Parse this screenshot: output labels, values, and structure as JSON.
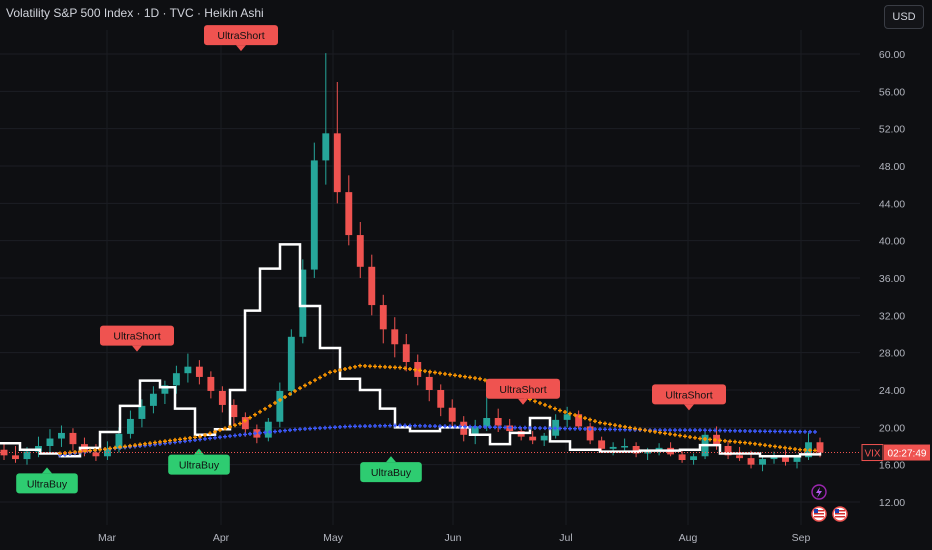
{
  "header": {
    "title": "Volatility S&P 500 Index · 1D · TVC · Heikin Ashi",
    "currency": "USD"
  },
  "price_tag": {
    "symbol": "VIX",
    "countdown": "02:27:49"
  },
  "colors": {
    "up": "#26a69a",
    "down": "#ef5350",
    "trail": "#ffffff",
    "slow": "#3d5afe",
    "mid": "#ff9800",
    "sell": "#ef5350",
    "buy": "#2ecc71",
    "bg": "#0e0f12"
  },
  "chart_data": {
    "type": "candlestick",
    "style": "Heikin Ashi",
    "ylim": [
      9.5,
      63
    ],
    "y_ticks": [
      "60.00",
      "56.00",
      "52.00",
      "48.00",
      "44.00",
      "40.00",
      "36.00",
      "32.00",
      "28.00",
      "24.00",
      "20.00",
      "16.00",
      "12.00"
    ],
    "x_ticks": [
      "Mar",
      "Apr",
      "May",
      "Jun",
      "Jul",
      "Aug",
      "Sep"
    ],
    "last_price": 17.3,
    "signals": [
      {
        "label": "UltraBuy",
        "type": "buy",
        "date": "Feb 21",
        "price": 17.0
      },
      {
        "label": "UltraShort",
        "type": "sell",
        "date": "Mar 10",
        "price": 27.9
      },
      {
        "label": "UltraBuy",
        "type": "buy",
        "date": "Mar 31",
        "price": 19.0
      },
      {
        "label": "UltraShort",
        "type": "sell",
        "date": "Apr 08",
        "price": 60.1
      },
      {
        "label": "UltraBuy",
        "type": "buy",
        "date": "May 23",
        "price": 18.2
      },
      {
        "label": "UltraShort",
        "type": "sell",
        "date": "Jun 24",
        "price": 22.2
      },
      {
        "label": "UltraShort",
        "type": "sell",
        "date": "Aug 01",
        "price": 21.6
      }
    ],
    "series": [
      {
        "name": "",
        "kind": "line",
        "points": [
          [
            0,
            18.3
          ],
          [
            20,
            17.6
          ],
          [
            40,
            17.2
          ],
          [
            60,
            16.9
          ],
          [
            80,
            17.8
          ],
          [
            100,
            19.5
          ],
          [
            120,
            22.3
          ],
          [
            140,
            25.0
          ],
          [
            160,
            24.3
          ],
          [
            175,
            22.0
          ],
          [
            195,
            19.2
          ],
          [
            215,
            19.8
          ],
          [
            230,
            24.0
          ],
          [
            245,
            32.5
          ],
          [
            260,
            37.0
          ],
          [
            280,
            39.6
          ],
          [
            300,
            33.0
          ],
          [
            320,
            28.5
          ],
          [
            340,
            25.2
          ],
          [
            360,
            24.0
          ],
          [
            380,
            22.0
          ],
          [
            395,
            20.0
          ],
          [
            410,
            19.6
          ],
          [
            440,
            20.0
          ],
          [
            470,
            19.2
          ],
          [
            490,
            18.2
          ],
          [
            510,
            19.4
          ],
          [
            530,
            21.0
          ],
          [
            550,
            18.5
          ],
          [
            570,
            17.6
          ],
          [
            600,
            17.4
          ],
          [
            640,
            17.5
          ],
          [
            680,
            17.6
          ],
          [
            700,
            18.1
          ],
          [
            720,
            17.2
          ],
          [
            760,
            16.9
          ],
          [
            800,
            17.1
          ],
          [
            820,
            17.3
          ]
        ]
      },
      {
        "name": "",
        "kind": "dots",
        "points": [
          [
            60,
            17.0
          ],
          [
            100,
            17.6
          ],
          [
            150,
            18.1
          ],
          [
            200,
            18.7
          ],
          [
            250,
            19.3
          ],
          [
            300,
            19.8
          ],
          [
            350,
            20.1
          ],
          [
            400,
            20.2
          ],
          [
            450,
            20.1
          ],
          [
            500,
            20.0
          ],
          [
            550,
            19.9
          ],
          [
            600,
            19.8
          ],
          [
            650,
            19.7
          ],
          [
            700,
            19.7
          ],
          [
            750,
            19.6
          ],
          [
            820,
            19.5
          ]
        ]
      },
      {
        "name": "",
        "kind": "dots",
        "points": [
          [
            60,
            17.2
          ],
          [
            100,
            17.6
          ],
          [
            150,
            18.3
          ],
          [
            200,
            19.0
          ],
          [
            240,
            20.4
          ],
          [
            270,
            22.3
          ],
          [
            300,
            24.2
          ],
          [
            330,
            25.9
          ],
          [
            360,
            26.6
          ],
          [
            400,
            26.4
          ],
          [
            440,
            25.8
          ],
          [
            480,
            25.2
          ],
          [
            500,
            24.6
          ],
          [
            530,
            23.0
          ],
          [
            560,
            21.8
          ],
          [
            600,
            20.5
          ],
          [
            650,
            19.6
          ],
          [
            700,
            18.8
          ],
          [
            750,
            18.3
          ],
          [
            800,
            17.6
          ],
          [
            820,
            17.5
          ]
        ]
      }
    ],
    "ohlc": [
      [
        17.6,
        18.4,
        16.5,
        17.0
      ],
      [
        17.0,
        18.0,
        16.2,
        16.6
      ],
      [
        16.6,
        17.9,
        16.0,
        17.4
      ],
      [
        17.4,
        19.0,
        16.8,
        18.0
      ],
      [
        18.0,
        19.8,
        17.2,
        18.8
      ],
      [
        18.8,
        20.2,
        17.9,
        19.4
      ],
      [
        19.4,
        19.9,
        17.5,
        18.2
      ],
      [
        18.2,
        18.9,
        16.9,
        17.3
      ],
      [
        17.3,
        18.2,
        16.4,
        16.9
      ],
      [
        16.9,
        18.5,
        16.5,
        17.7
      ],
      [
        17.7,
        20.0,
        17.3,
        19.3
      ],
      [
        19.3,
        21.8,
        18.8,
        20.9
      ],
      [
        20.9,
        23.0,
        20.0,
        22.3
      ],
      [
        22.3,
        24.4,
        21.5,
        23.6
      ],
      [
        23.6,
        25.0,
        22.5,
        24.5
      ],
      [
        24.5,
        26.6,
        23.6,
        25.8
      ],
      [
        25.8,
        27.9,
        24.8,
        26.5
      ],
      [
        26.5,
        27.2,
        24.6,
        25.4
      ],
      [
        25.4,
        26.0,
        23.1,
        23.9
      ],
      [
        23.9,
        24.4,
        21.6,
        22.4
      ],
      [
        22.4,
        23.0,
        20.2,
        21.1
      ],
      [
        21.1,
        21.6,
        19.0,
        19.8
      ],
      [
        19.8,
        20.3,
        18.3,
        18.9
      ],
      [
        18.9,
        21.0,
        18.5,
        20.6
      ],
      [
        20.6,
        24.8,
        20.0,
        23.9
      ],
      [
        23.9,
        30.5,
        23.4,
        29.7
      ],
      [
        29.7,
        38.0,
        29.0,
        36.9
      ],
      [
        36.9,
        50.5,
        36.0,
        48.6
      ],
      [
        48.6,
        60.1,
        46.0,
        51.5
      ],
      [
        51.5,
        57.0,
        44.0,
        45.2
      ],
      [
        45.2,
        47.0,
        39.5,
        40.6
      ],
      [
        40.6,
        42.0,
        36.0,
        37.2
      ],
      [
        37.2,
        38.5,
        32.0,
        33.1
      ],
      [
        33.1,
        34.2,
        29.0,
        30.5
      ],
      [
        30.5,
        31.8,
        27.5,
        28.9
      ],
      [
        28.9,
        30.0,
        26.0,
        27.0
      ],
      [
        27.0,
        27.8,
        24.5,
        25.4
      ],
      [
        25.4,
        26.0,
        22.8,
        24.0
      ],
      [
        24.0,
        24.6,
        21.2,
        22.1
      ],
      [
        22.1,
        23.0,
        20.0,
        20.6
      ],
      [
        20.6,
        21.2,
        18.5,
        19.2
      ],
      [
        19.2,
        20.8,
        18.2,
        20.1
      ],
      [
        20.1,
        25.2,
        19.6,
        21.0
      ],
      [
        21.0,
        22.0,
        19.5,
        20.2
      ],
      [
        20.2,
        20.9,
        19.0,
        19.6
      ],
      [
        19.6,
        20.0,
        18.6,
        19.0
      ],
      [
        19.0,
        19.6,
        18.2,
        18.6
      ],
      [
        18.6,
        19.4,
        18.0,
        19.1
      ],
      [
        19.1,
        21.4,
        18.8,
        20.8
      ],
      [
        20.8,
        22.2,
        20.0,
        21.4
      ],
      [
        21.4,
        21.8,
        19.8,
        20.1
      ],
      [
        20.1,
        20.5,
        18.2,
        18.6
      ],
      [
        18.6,
        19.0,
        17.3,
        17.7
      ],
      [
        17.7,
        18.4,
        17.0,
        17.9
      ],
      [
        17.9,
        18.8,
        17.4,
        18.0
      ],
      [
        18.0,
        18.4,
        16.8,
        17.2
      ],
      [
        17.2,
        17.8,
        16.5,
        17.5
      ],
      [
        17.5,
        18.3,
        17.0,
        17.8
      ],
      [
        17.8,
        18.4,
        16.9,
        17.1
      ],
      [
        17.1,
        17.6,
        16.2,
        16.5
      ],
      [
        16.5,
        17.2,
        16.0,
        16.9
      ],
      [
        16.9,
        19.8,
        16.6,
        19.2
      ],
      [
        19.2,
        20.1,
        17.6,
        18.0
      ],
      [
        18.0,
        18.6,
        16.6,
        17.0
      ],
      [
        17.0,
        17.9,
        16.4,
        16.7
      ],
      [
        16.7,
        17.5,
        15.6,
        16.0
      ],
      [
        16.0,
        16.9,
        15.3,
        16.6
      ],
      [
        16.6,
        17.4,
        16.1,
        16.9
      ],
      [
        16.9,
        17.6,
        15.9,
        16.3
      ],
      [
        16.3,
        17.1,
        15.6,
        16.8
      ],
      [
        16.8,
        19.4,
        16.5,
        18.4
      ],
      [
        18.4,
        18.9,
        16.8,
        17.3
      ]
    ]
  }
}
